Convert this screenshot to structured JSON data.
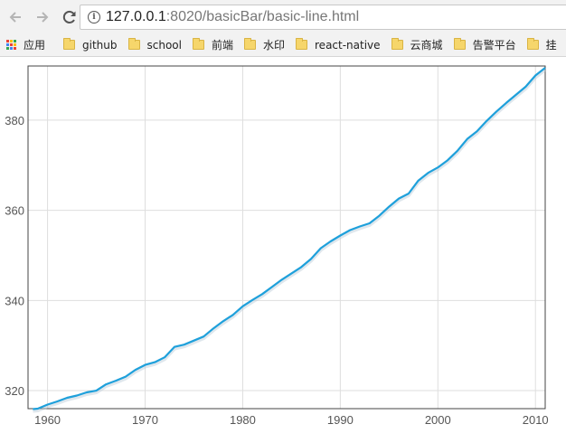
{
  "browser": {
    "url_host": "127.0.0.1",
    "url_rest": ":8020/basicBar/basic-line.html",
    "bookmarks": [
      "应用",
      "github",
      "school",
      "前端",
      "水印",
      "react-native",
      "云商城",
      "告警平台",
      "挂"
    ]
  },
  "chart_data": {
    "type": "line",
    "title": "",
    "xlabel": "",
    "ylabel": "",
    "x": [
      1958.5,
      1959,
      1960,
      1961,
      1962,
      1963,
      1964,
      1965,
      1966,
      1967,
      1968,
      1969,
      1970,
      1971,
      1972,
      1973,
      1974,
      1975,
      1976,
      1977,
      1978,
      1979,
      1980,
      1981,
      1982,
      1983,
      1984,
      1985,
      1986,
      1987,
      1988,
      1989,
      1990,
      1991,
      1992,
      1993,
      1994,
      1995,
      1996,
      1997,
      1998,
      1999,
      2000,
      2001,
      2002,
      2003,
      2004,
      2005,
      2006,
      2007,
      2008,
      2009,
      2010,
      2011
    ],
    "y": [
      315.9,
      316.0,
      316.9,
      317.6,
      318.4,
      318.9,
      319.6,
      320.0,
      321.4,
      322.2,
      323.1,
      324.6,
      325.7,
      326.3,
      327.4,
      329.7,
      330.2,
      331.1,
      332.0,
      333.8,
      335.4,
      336.8,
      338.7,
      340.1,
      341.4,
      343.0,
      344.6,
      346.0,
      347.4,
      349.2,
      351.6,
      353.1,
      354.4,
      355.6,
      356.4,
      357.1,
      358.8,
      360.8,
      362.6,
      363.7,
      366.6,
      368.3,
      369.5,
      371.1,
      373.2,
      375.8,
      377.5,
      379.8,
      381.9,
      383.8,
      385.6,
      387.4,
      389.9,
      391.6
    ],
    "xlim": [
      1958,
      2011
    ],
    "ylim": [
      316,
      392
    ],
    "xticks": [
      1960,
      1970,
      1980,
      1990,
      2000,
      2010
    ],
    "yticks": [
      320,
      340,
      360,
      380
    ],
    "grid": true,
    "legend": "none",
    "line_color": "#1ea0db"
  }
}
